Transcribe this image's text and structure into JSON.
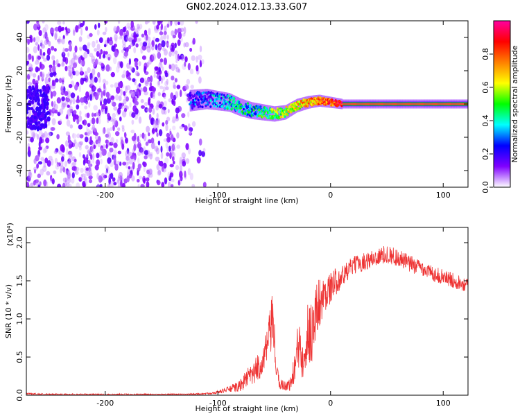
{
  "title": "GN02.2024.012.13.33.G07",
  "chart_data": [
    {
      "type": "heatmap",
      "title": "GN02.2024.012.13.33.G07",
      "xlabel": "Height of straight line (km)",
      "ylabel": "Frequency (Hz)",
      "xlim": [
        -270,
        122
      ],
      "ylim": [
        -50,
        50
      ],
      "x_ticks": [
        -200,
        -100,
        0,
        100
      ],
      "x_tick_labels": [
        "-200",
        "-100",
        "0",
        "100"
      ],
      "y_ticks": [
        -40,
        -20,
        0,
        20,
        40
      ],
      "y_tick_labels": [
        "-40",
        "-20",
        "0",
        "20",
        "40"
      ],
      "colorbar": {
        "label": "Normalized spectral amplitude",
        "range": [
          0,
          1
        ],
        "ticks": [
          0.0,
          0.2,
          0.4,
          0.6,
          0.8
        ],
        "tick_labels": [
          "0.0",
          "0.2",
          "0.4",
          "0.6",
          "0.8"
        ],
        "colormap": [
          "#ffffff",
          "#8000ff",
          "#0000ff",
          "#00ffff",
          "#00ff00",
          "#ffff00",
          "#ff8000",
          "#ff0000",
          "#ff00a0"
        ]
      },
      "noise_region": {
        "x": [
          -270,
          -110
        ],
        "frequency_spread": [
          -50,
          50
        ],
        "amplitude": 0.15
      },
      "ridge": {
        "x": [
          -125,
          -110,
          -100,
          -90,
          -80,
          -70,
          -60,
          -50,
          -40,
          -30,
          -20,
          -10,
          0,
          10,
          50,
          90,
          122
        ],
        "frequency": [
          2,
          3,
          2,
          1,
          -2,
          -4,
          -5,
          -6,
          -5,
          -1,
          1,
          2,
          1,
          0,
          0,
          0,
          0
        ],
        "amplitude": [
          0.35,
          0.4,
          0.45,
          0.5,
          0.55,
          0.5,
          0.6,
          0.65,
          0.7,
          0.8,
          0.85,
          0.9,
          0.95,
          1.0,
          1.0,
          1.0,
          1.0
        ]
      },
      "grid": false,
      "legend": "none"
    },
    {
      "type": "line",
      "title": "",
      "xlabel": "Height of straight line (km)",
      "ylabel": "SNR (10 * v/v)",
      "y_multiplier": "(x10⁴)",
      "xlim": [
        -270,
        122
      ],
      "ylim": [
        0,
        2.2
      ],
      "x_ticks": [
        -200,
        -100,
        0,
        100
      ],
      "x_tick_labels": [
        "-200",
        "-100",
        "0",
        "100"
      ],
      "y_ticks": [
        0.0,
        0.5,
        1.0,
        1.5,
        2.0
      ],
      "y_tick_labels": [
        "0.0",
        "0.5",
        "1.0",
        "1.5",
        "2.0"
      ],
      "series": [
        {
          "color": "#ee3333",
          "x": [
            -270,
            -250,
            -220,
            -190,
            -160,
            -130,
            -110,
            -100,
            -90,
            -80,
            -75,
            -70,
            -60,
            -55,
            -52,
            -50,
            -48,
            -45,
            -40,
            -35,
            -30,
            -28,
            -25,
            -20,
            -15,
            -12,
            -10,
            -8,
            -5,
            0,
            5,
            10,
            20,
            30,
            40,
            50,
            60,
            70,
            80,
            90,
            100,
            110,
            122
          ],
          "y": [
            0.02,
            0.01,
            0.01,
            0.01,
            0.01,
            0.01,
            0.02,
            0.04,
            0.08,
            0.12,
            0.22,
            0.25,
            0.45,
            0.7,
            0.95,
            0.75,
            0.3,
            0.15,
            0.12,
            0.15,
            0.5,
            0.7,
            0.6,
            0.8,
            0.9,
            1.1,
            1.25,
            1.2,
            1.35,
            1.4,
            1.5,
            1.55,
            1.7,
            1.75,
            1.8,
            1.85,
            1.8,
            1.72,
            1.68,
            1.6,
            1.55,
            1.5,
            1.45
          ],
          "noise_amplitude": [
            0.01,
            0.01,
            0.01,
            0.01,
            0.01,
            0.01,
            0.01,
            0.02,
            0.04,
            0.08,
            0.12,
            0.15,
            0.2,
            0.3,
            0.35,
            0.3,
            0.12,
            0.08,
            0.06,
            0.1,
            0.3,
            0.45,
            0.4,
            0.45,
            0.45,
            0.4,
            0.35,
            0.3,
            0.25,
            0.2,
            0.18,
            0.15,
            0.12,
            0.12,
            0.12,
            0.12,
            0.12,
            0.12,
            0.1,
            0.1,
            0.1,
            0.1,
            0.1
          ]
        }
      ],
      "grid": false,
      "legend": "none"
    }
  ]
}
